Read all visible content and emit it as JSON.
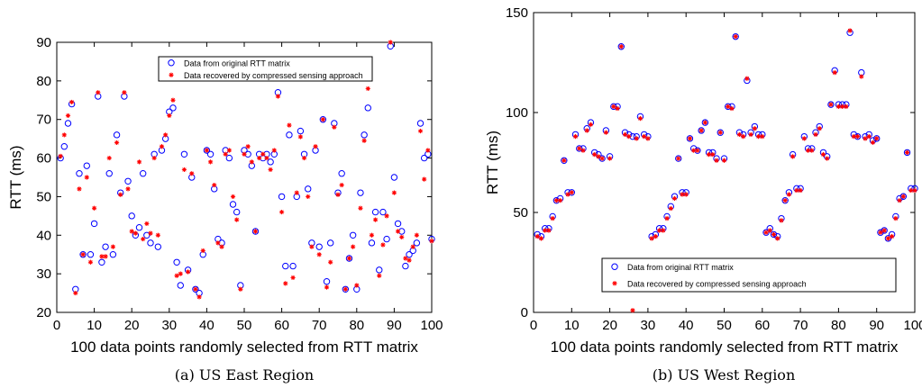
{
  "figure": {
    "captions": [
      "(a) US East Region",
      "(b) US West Region"
    ]
  },
  "chart_data": [
    {
      "type": "scatter",
      "caption": "(a) US East Region",
      "xlabel": "100 data points randomly selected from RTT matrix",
      "ylabel": "RTT (ms)",
      "xlim": [
        0,
        100
      ],
      "ylim": [
        20,
        90
      ],
      "xticks": [
        0,
        10,
        20,
        30,
        40,
        50,
        60,
        70,
        80,
        90,
        100
      ],
      "yticks": [
        20,
        30,
        40,
        50,
        60,
        70,
        80,
        90
      ],
      "legend_position": "top-center",
      "series": [
        {
          "name": "Data from original RTT matrix",
          "marker": "circle-open",
          "color": "#0000ff",
          "x": [
            1,
            2,
            3,
            4,
            5,
            6,
            7,
            8,
            9,
            10,
            11,
            12,
            13,
            14,
            15,
            16,
            17,
            18,
            19,
            20,
            21,
            22,
            23,
            24,
            25,
            26,
            27,
            28,
            29,
            30,
            31,
            32,
            33,
            34,
            35,
            36,
            37,
            38,
            39,
            40,
            41,
            42,
            43,
            44,
            45,
            46,
            47,
            48,
            49,
            50,
            51,
            52,
            53,
            54,
            55,
            56,
            57,
            58,
            59,
            60,
            61,
            62,
            63,
            64,
            65,
            66,
            67,
            68,
            69,
            70,
            71,
            72,
            73,
            74,
            75,
            76,
            77,
            78,
            79,
            80,
            81,
            82,
            83,
            84,
            85,
            86,
            87,
            88,
            89,
            90,
            91,
            92,
            93,
            94,
            95,
            96,
            97,
            98,
            99,
            100
          ],
          "y": [
            60,
            63,
            69,
            74,
            26,
            56,
            35,
            58,
            35,
            43,
            76,
            33,
            37,
            56,
            35,
            66,
            51,
            76,
            54,
            45,
            40,
            42,
            56,
            40,
            38,
            61,
            37,
            62,
            65,
            72,
            73,
            33,
            27,
            61,
            31,
            55,
            26,
            25,
            35,
            62,
            61,
            52,
            39,
            38,
            62,
            60,
            48,
            46,
            27,
            62,
            61,
            58,
            41,
            61,
            60,
            61,
            59,
            61,
            77,
            50,
            32,
            66,
            32,
            50,
            67,
            61,
            52,
            38,
            62,
            37,
            70,
            28,
            38,
            69,
            51,
            56,
            26,
            34,
            40,
            26,
            51,
            66,
            73,
            38,
            46,
            31,
            46,
            39,
            89,
            55,
            43,
            41,
            32,
            35,
            36,
            38,
            69,
            60,
            61,
            39
          ]
        },
        {
          "name": "Data recovered by compressed sensing approach",
          "marker": "asterisk",
          "color": "#ff0000",
          "x": [
            1,
            2,
            3,
            4,
            5,
            6,
            7,
            8,
            9,
            10,
            11,
            12,
            13,
            14,
            15,
            16,
            17,
            18,
            19,
            20,
            21,
            22,
            23,
            24,
            25,
            26,
            27,
            28,
            29,
            30,
            31,
            32,
            33,
            34,
            35,
            36,
            37,
            38,
            39,
            40,
            41,
            42,
            43,
            44,
            45,
            46,
            47,
            48,
            49,
            50,
            51,
            52,
            53,
            54,
            55,
            56,
            57,
            58,
            59,
            60,
            61,
            62,
            63,
            64,
            65,
            66,
            67,
            68,
            69,
            70,
            71,
            72,
            73,
            74,
            75,
            76,
            77,
            78,
            79,
            80,
            81,
            82,
            83,
            84,
            85,
            86,
            87,
            88,
            89,
            90,
            91,
            92,
            93,
            94,
            95,
            96,
            97,
            98,
            99,
            100
          ],
          "y": [
            60.5,
            66,
            71,
            74.5,
            25,
            52,
            35,
            55,
            33,
            47,
            77,
            34.5,
            34.5,
            60,
            37,
            64,
            50.5,
            77,
            52,
            41,
            40.5,
            59,
            39,
            43,
            40.5,
            60,
            40,
            63,
            66,
            71,
            75,
            29.5,
            30,
            57,
            30.5,
            56,
            26,
            24,
            36,
            62,
            59,
            53,
            38,
            37,
            61,
            62,
            50,
            44,
            26,
            61,
            63,
            59,
            41,
            60,
            61,
            60,
            57,
            62,
            76,
            46,
            27.5,
            68.5,
            29,
            51,
            65.5,
            60,
            50,
            37,
            63,
            35,
            70,
            26.5,
            33,
            68,
            50.5,
            53,
            26,
            34,
            37,
            27,
            47,
            64.5,
            78,
            40,
            44,
            29.5,
            37.5,
            45,
            90,
            51,
            41,
            39.5,
            34,
            33.5,
            37,
            40,
            67,
            54.5,
            62,
            38.5
          ]
        }
      ]
    },
    {
      "type": "scatter",
      "caption": "(b) US West Region",
      "xlabel": "100 data points randomly selected from RTT matrix",
      "ylabel": "RTT (ms)",
      "xlim": [
        0,
        100
      ],
      "ylim": [
        0,
        150
      ],
      "xticks": [
        0,
        10,
        20,
        30,
        40,
        50,
        60,
        70,
        80,
        90,
        100
      ],
      "yticks": [
        0,
        50,
        100,
        150
      ],
      "legend_position": "bottom-center",
      "series": [
        {
          "name": "Data from original RTT matrix",
          "marker": "circle-open",
          "color": "#0000ff",
          "x": [
            1,
            2,
            3,
            4,
            5,
            6,
            7,
            8,
            9,
            10,
            11,
            12,
            13,
            14,
            15,
            16,
            17,
            18,
            19,
            20,
            21,
            22,
            23,
            24,
            25,
            26,
            27,
            28,
            29,
            30,
            31,
            32,
            33,
            34,
            35,
            36,
            37,
            38,
            39,
            40,
            41,
            42,
            43,
            44,
            45,
            46,
            47,
            48,
            49,
            50,
            51,
            52,
            53,
            54,
            55,
            56,
            57,
            58,
            59,
            60,
            61,
            62,
            63,
            64,
            65,
            66,
            67,
            68,
            69,
            70,
            71,
            72,
            73,
            74,
            75,
            76,
            77,
            78,
            79,
            80,
            81,
            82,
            83,
            84,
            85,
            86,
            87,
            88,
            89,
            90,
            91,
            92,
            93,
            94,
            95,
            96,
            97,
            98,
            99,
            100
          ],
          "y": [
            39,
            38,
            42,
            42,
            48,
            56,
            57,
            76,
            60,
            60,
            89,
            82,
            82,
            92,
            95,
            80,
            79,
            77,
            91,
            78,
            103,
            103,
            133,
            90,
            89,
            88,
            88,
            98,
            89,
            88,
            38,
            39,
            42,
            42,
            48,
            53,
            58,
            77,
            60,
            60,
            87,
            82,
            81,
            91,
            95,
            80,
            80,
            77,
            90,
            77,
            103,
            103,
            138,
            90,
            89,
            116,
            90,
            93,
            89,
            89,
            40,
            42,
            39,
            38,
            47,
            56,
            60,
            79,
            62,
            62,
            88,
            82,
            82,
            90,
            93,
            80,
            78,
            104,
            121,
            104,
            104,
            104,
            140,
            89,
            88,
            120,
            88,
            89,
            86,
            87,
            40,
            41,
            37,
            39,
            48,
            57,
            58,
            80,
            62,
            62
          ]
        },
        {
          "name": "Data recovered by compressed sensing approach",
          "marker": "asterisk",
          "color": "#ff0000",
          "x": [
            1,
            2,
            3,
            4,
            5,
            6,
            7,
            8,
            9,
            10,
            11,
            12,
            13,
            14,
            15,
            16,
            17,
            18,
            19,
            20,
            21,
            22,
            23,
            24,
            25,
            26,
            27,
            28,
            29,
            30,
            31,
            32,
            33,
            34,
            35,
            36,
            37,
            38,
            39,
            40,
            41,
            42,
            43,
            44,
            45,
            46,
            47,
            48,
            49,
            50,
            51,
            52,
            53,
            54,
            55,
            56,
            57,
            58,
            59,
            60,
            61,
            62,
            63,
            64,
            65,
            66,
            67,
            68,
            69,
            70,
            71,
            72,
            73,
            74,
            75,
            76,
            77,
            78,
            79,
            80,
            81,
            82,
            83,
            84,
            85,
            86,
            87,
            88,
            89,
            90,
            91,
            92,
            93,
            94,
            95,
            96,
            97,
            98,
            99,
            100
          ],
          "y": [
            38,
            37,
            41,
            41,
            47,
            56,
            56,
            76,
            59,
            60,
            88,
            82,
            81,
            91,
            94,
            79,
            78,
            77,
            90,
            77,
            103,
            102,
            133,
            89,
            88,
            1,
            87,
            97,
            88,
            87,
            37,
            38,
            41,
            41,
            47,
            52,
            57,
            77,
            59,
            59,
            87,
            81,
            81,
            91,
            95,
            79,
            79,
            76,
            90,
            76,
            103,
            102,
            138,
            89,
            88,
            117,
            89,
            92,
            88,
            88,
            40,
            41,
            39,
            37,
            46,
            56,
            59,
            78,
            61,
            61,
            87,
            81,
            81,
            89,
            92,
            79,
            77,
            104,
            120,
            103,
            103,
            103,
            141,
            88,
            88,
            118,
            87,
            88,
            85,
            87,
            40,
            41,
            37,
            38,
            47,
            56,
            58,
            80,
            61,
            61
          ]
        }
      ]
    }
  ]
}
